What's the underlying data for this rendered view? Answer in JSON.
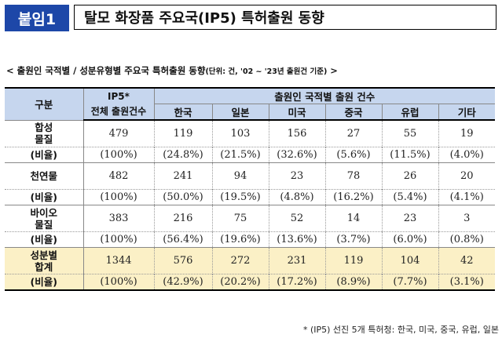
{
  "header": {
    "badge": "붙임1",
    "title": "탈모 화장품 주요국(IP5) 특허출원 동향"
  },
  "subtitle": {
    "main": "< 출원인 국적별 / 성분유형별 주요국 특허출원 동향",
    "unit": "(단위: 건, '02 ~ '23년 출원건 기준)",
    "end": " >"
  },
  "table": {
    "col_gubun": "구분",
    "col_ip5_line1": "IP5*",
    "col_ip5_line2": "전체 출원건수",
    "group_header": "출원인 국적별 출원 건수",
    "countries": [
      "한국",
      "일본",
      "미국",
      "중국",
      "유럽",
      "기타"
    ],
    "rows": [
      {
        "label": "합성\n물질",
        "ip5": "479",
        "values": [
          "119",
          "103",
          "156",
          "27",
          "55",
          "19"
        ]
      },
      {
        "label": "(비율)",
        "ip5": "(100%)",
        "values": [
          "(24.8%)",
          "(21.5%)",
          "(32.6%)",
          "(5.6%)",
          "(11.5%)",
          "(4.0%)"
        ]
      },
      {
        "label": "천연물",
        "ip5": "482",
        "values": [
          "241",
          "94",
          "23",
          "78",
          "26",
          "20"
        ]
      },
      {
        "label": "(비율)",
        "ip5": "(100%)",
        "values": [
          "(50.0%)",
          "(19.5%)",
          "(4.8%)",
          "(16.2%)",
          "(5.4%)",
          "(4.1%)"
        ]
      },
      {
        "label": "바이오\n물질",
        "ip5": "383",
        "values": [
          "216",
          "75",
          "52",
          "14",
          "23",
          "3"
        ]
      },
      {
        "label": "(비율)",
        "ip5": "(100%)",
        "values": [
          "(56.4%)",
          "(19.6%)",
          "(13.6%)",
          "(3.7%)",
          "(6.0%)",
          "(0.8%)"
        ]
      },
      {
        "label": "성분별\n합계",
        "ip5": "1344",
        "values": [
          "576",
          "272",
          "231",
          "119",
          "104",
          "42"
        ]
      },
      {
        "label": "(비율)",
        "ip5": "(100%)",
        "values": [
          "(42.9%)",
          "(20.2%)",
          "(17.2%)",
          "(8.9%)",
          "(7.7%)",
          "(3.1%)"
        ]
      }
    ]
  },
  "footnote": "* (IP5) 선진 5개 특허청: 한국, 미국, 중국, 유럽, 일본",
  "colors": {
    "badge": "#1d47a8",
    "header_bg": "#c6d6ee",
    "total_bg": "#fbf0c6"
  }
}
